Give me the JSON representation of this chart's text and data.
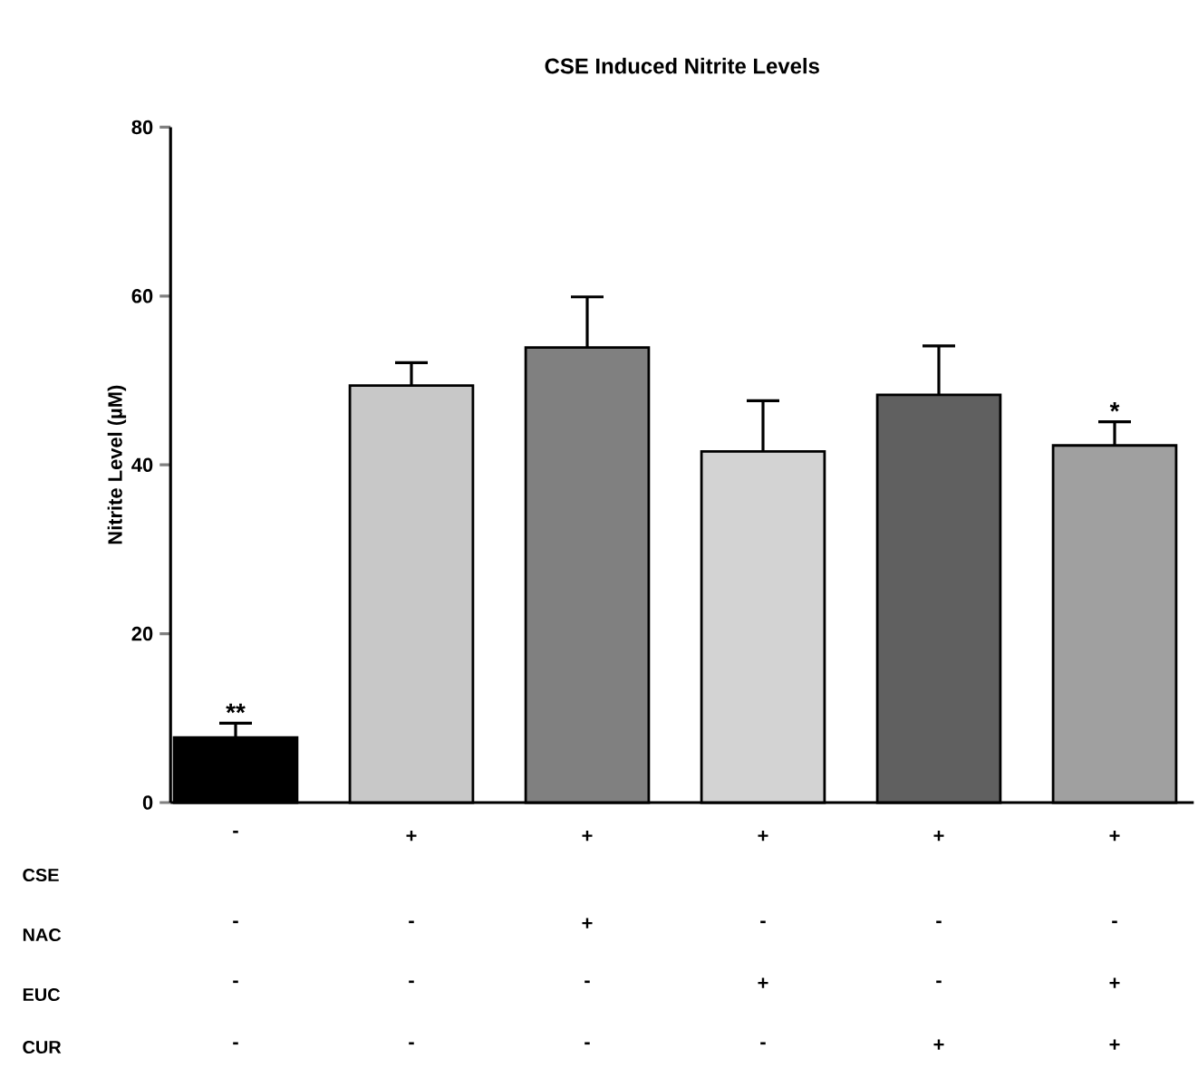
{
  "chart_data": {
    "type": "bar",
    "title": "CSE Induced Nitrite Levels",
    "ylabel": "Nitrite Level (µM)",
    "categories": [
      "-",
      "+",
      "+",
      "+",
      "+",
      "+"
    ],
    "values": [
      7.7,
      49.4,
      53.9,
      41.6,
      48.3,
      42.3
    ],
    "errors": [
      1.7,
      2.7,
      6.0,
      6.0,
      5.8,
      2.8
    ],
    "value_labels": [
      "**",
      null,
      null,
      null,
      null,
      "*"
    ],
    "colors": [
      "#000000",
      "#c8c8c8",
      "#808080",
      "#d3d3d3",
      "#606060",
      "#a0a0a0"
    ],
    "ylim": [
      0,
      80
    ],
    "yticks": [
      0,
      20,
      40,
      60,
      80
    ],
    "grid": false,
    "annotations": [
      "CSE",
      "NAC",
      "EUC",
      "CUR",
      "-",
      "-",
      "+",
      "-",
      "-",
      "-",
      "-",
      "-",
      "-",
      "+",
      "-",
      "+",
      "-",
      "-",
      "-",
      "-",
      "+",
      "+"
    ]
  }
}
